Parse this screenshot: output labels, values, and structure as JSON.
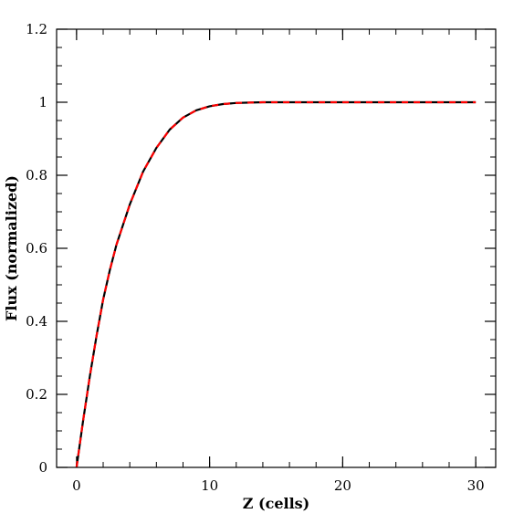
{
  "chart_data": {
    "type": "line",
    "title": "",
    "xlabel": "Z (cells)",
    "ylabel": "Flux (normalized)",
    "xlim": [
      -1.5,
      31.5
    ],
    "ylim": [
      0,
      1.2
    ],
    "x_major_ticks": [
      0,
      10,
      20,
      30
    ],
    "x_tick_labels": [
      "0",
      "10",
      "20",
      "30"
    ],
    "x_minor_step": 2,
    "y_major_ticks": [
      0,
      0.2,
      0.4,
      0.6,
      0.8,
      1.0,
      1.2
    ],
    "y_tick_labels": [
      "0",
      "0.2",
      "0.4",
      "0.6",
      "0.8",
      "1",
      "1.2"
    ],
    "y_minor_step": 0.05,
    "grid": false,
    "legend": "none",
    "series": [
      {
        "style": "solid",
        "color": "#000000",
        "x": [
          0,
          0.5,
          1,
          1.5,
          2,
          2.5,
          3,
          4,
          5,
          6,
          7,
          8,
          9,
          10,
          11,
          12,
          13,
          14,
          15,
          20,
          25,
          30
        ],
        "y": [
          0,
          0.13,
          0.25,
          0.36,
          0.46,
          0.54,
          0.61,
          0.72,
          0.81,
          0.875,
          0.925,
          0.958,
          0.978,
          0.989,
          0.995,
          0.998,
          0.999,
          1.0,
          1.0,
          1.0,
          1.0,
          1.0
        ]
      },
      {
        "style": "dashed",
        "color": "#ff0000",
        "x": [
          0,
          0.5,
          1,
          1.5,
          2,
          2.5,
          3,
          4,
          5,
          6,
          7,
          8,
          9,
          10,
          11,
          12,
          13,
          14,
          15,
          20,
          25,
          30
        ],
        "y": [
          0,
          0.13,
          0.25,
          0.36,
          0.46,
          0.54,
          0.61,
          0.72,
          0.81,
          0.875,
          0.925,
          0.958,
          0.978,
          0.989,
          0.995,
          0.998,
          0.999,
          1.0,
          1.0,
          1.0,
          1.0,
          1.0
        ]
      }
    ]
  }
}
